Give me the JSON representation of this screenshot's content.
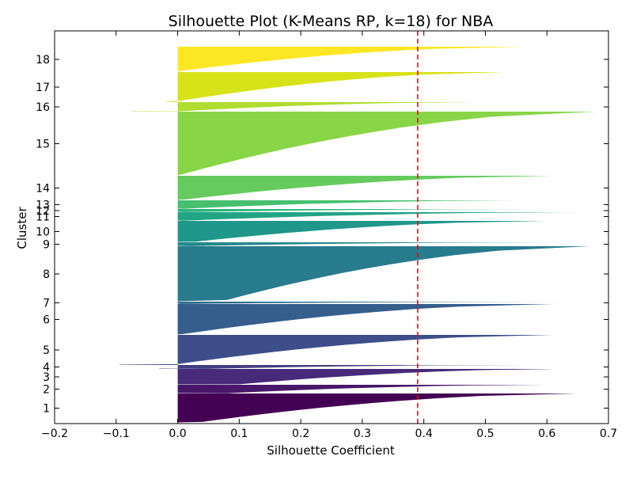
{
  "chart_data": {
    "type": "silhouette",
    "title": "Silhouette Plot (K-Means RP, k=18) for NBA",
    "xlabel": "Silhouette Coefficient",
    "ylabel": "Cluster",
    "xlim": [
      -0.2,
      0.7
    ],
    "xticks": [
      "−0.2",
      "−0.1",
      "0.0",
      "0.1",
      "0.2",
      "0.3",
      "0.4",
      "0.5",
      "0.6",
      "0.7"
    ],
    "xtick_values": [
      -0.2,
      -0.1,
      0.0,
      0.1,
      0.2,
      0.3,
      0.4,
      0.5,
      0.6,
      0.7
    ],
    "mean_silhouette": 0.39,
    "mean_line_color": "#e8000b",
    "grid": false,
    "clusters": [
      {
        "label": "1",
        "rows": [
          0.58,
          0.535
        ],
        "max": 0.65,
        "min": 0.0,
        "p10": 0.04,
        "color": "#440154"
      },
      {
        "label": "2",
        "rows": [
          0.535,
          0.52
        ],
        "max": 0.6,
        "min": 0.0,
        "p10": 0.08,
        "color": "#481769"
      },
      {
        "label": "3",
        "rows": [
          0.52,
          0.505
        ],
        "max": 0.615,
        "min": 0.0,
        "p10": 0.1,
        "color": "#472a7a"
      },
      {
        "label": "4",
        "rows": [
          0.505,
          0.498
        ],
        "max": 0.56,
        "min": -0.03,
        "p10": 0.05,
        "color": "#433d84"
      },
      {
        "label": "5",
        "rows": [
          0.498,
          0.47
        ],
        "max": 0.61,
        "min": -0.095,
        "p10": 0.0,
        "color": "#3d4e8a"
      },
      {
        "label": "6",
        "rows": [
          0.47,
          0.438
        ],
        "max": 0.61,
        "min": 0.0,
        "p10": 0.01,
        "color": "#355e8d"
      },
      {
        "label": "7",
        "rows": [
          0.438,
          0.422
        ],
        "max": 0.655,
        "min": 0.0,
        "p10": 0.005,
        "color": "#2e6d8e"
      },
      {
        "label": "8",
        "rows": [
          0.422,
          0.362
        ],
        "max": 0.67,
        "min": 0.0,
        "p10": 0.08,
        "color": "#297b8e"
      },
      {
        "label": "9",
        "rows": [
          0.362,
          0.348
        ],
        "max": 0.615,
        "min": 0.0,
        "p10": 0.02,
        "color": "#23898e"
      },
      {
        "label": "10",
        "rows": [
          0.348,
          0.333
        ],
        "max": 0.6,
        "min": 0.0,
        "p10": 0.03,
        "color": "#1f978b"
      },
      {
        "label": "11",
        "rows": [
          0.333,
          0.326
        ],
        "max": 0.65,
        "min": 0.0,
        "p10": 0.01,
        "color": "#21a585"
      },
      {
        "label": "12",
        "rows": [
          0.326,
          0.318
        ],
        "max": 0.6,
        "min": 0.0,
        "p10": 0.01,
        "color": "#2eb37c"
      },
      {
        "label": "13",
        "rows": [
          0.318,
          0.307
        ],
        "max": 0.55,
        "min": 0.0,
        "p10": 0.01,
        "color": "#46c06f"
      },
      {
        "label": "14",
        "rows": [
          0.307,
          0.282
        ],
        "max": 0.61,
        "min": 0.0,
        "p10": 0.01,
        "color": "#65cb5e"
      },
      {
        "label": "15",
        "rows": [
          0.282,
          0.217
        ],
        "max": 0.68,
        "min": 0.0,
        "p10": 0.01,
        "color": "#89d548"
      },
      {
        "label": "16",
        "rows": [
          0.217,
          0.21
        ],
        "max": 0.49,
        "min": -0.075,
        "p10": 0.0,
        "color": "#b0dd2f"
      },
      {
        "label": "17",
        "rows": [
          0.21,
          0.18
        ],
        "max": 0.535,
        "min": -0.02,
        "p10": 0.0,
        "color": "#d8e219"
      },
      {
        "label": "18",
        "rows": [
          0.18,
          0.15
        ],
        "max": 0.56,
        "min": 0.0,
        "p10": 0.0,
        "color": "#fde725"
      }
    ]
  }
}
